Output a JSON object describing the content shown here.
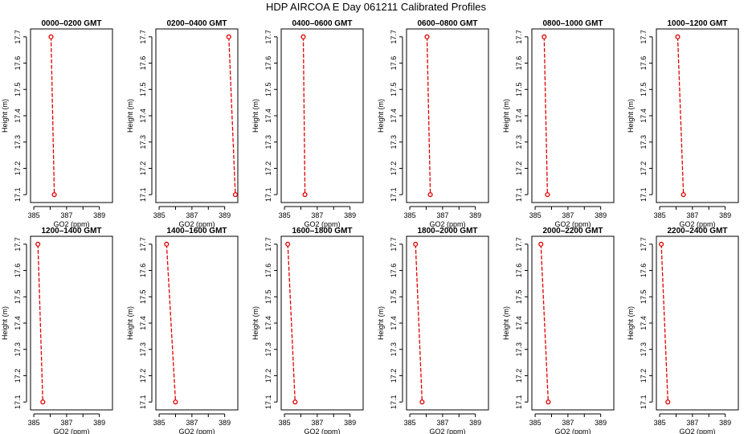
{
  "figure": {
    "title": "HDP AIRCOA E  Day 061211  Calibrated Profiles"
  },
  "chart_data": [
    {
      "type": "line",
      "title": "0000–0200 GMT",
      "xlabel": "GO2 (ppm)",
      "ylabel": "Height (m)",
      "xlim": [
        384.8,
        389.8
      ],
      "ylim": [
        17.07,
        17.73
      ],
      "x_ticks": [
        385,
        387,
        389
      ],
      "y_ticks": [
        17.1,
        17.2,
        17.3,
        17.4,
        17.5,
        17.6,
        17.7
      ],
      "x_tick_labels": [
        "385",
        "387",
        "389"
      ],
      "y_tick_labels": [
        "17.1",
        "17.2",
        "17.3",
        "17.4",
        "17.5",
        "17.6",
        "17.7"
      ],
      "grid": false,
      "legend": "none",
      "series": [
        {
          "x": [
            386.05,
            386.25
          ],
          "y": [
            17.7,
            17.1
          ]
        }
      ]
    },
    {
      "type": "line",
      "title": "0200–0400 GMT",
      "xlabel": "GO2 (ppm)",
      "ylabel": "Height (m)",
      "xlim": [
        384.8,
        389.8
      ],
      "ylim": [
        17.07,
        17.73
      ],
      "x_ticks": [
        385,
        387,
        389
      ],
      "y_ticks": [
        17.1,
        17.2,
        17.3,
        17.4,
        17.5,
        17.6,
        17.7
      ],
      "x_tick_labels": [
        "385",
        "387",
        "389"
      ],
      "y_tick_labels": [
        "17.1",
        "17.2",
        "17.3",
        "17.4",
        "17.5",
        "17.6",
        "17.7"
      ],
      "grid": false,
      "legend": "none",
      "series": [
        {
          "x": [
            389.25,
            389.65
          ],
          "y": [
            17.7,
            17.1
          ]
        }
      ]
    },
    {
      "type": "line",
      "title": "0400–0600 GMT",
      "xlabel": "GO2 (ppm)",
      "ylabel": "Height (m)",
      "xlim": [
        384.8,
        389.8
      ],
      "ylim": [
        17.07,
        17.73
      ],
      "x_ticks": [
        385,
        387,
        389
      ],
      "y_ticks": [
        17.1,
        17.2,
        17.3,
        17.4,
        17.5,
        17.6,
        17.7
      ],
      "x_tick_labels": [
        "385",
        "387",
        "389"
      ],
      "y_tick_labels": [
        "17.1",
        "17.2",
        "17.3",
        "17.4",
        "17.5",
        "17.6",
        "17.7"
      ],
      "grid": false,
      "legend": "none",
      "series": [
        {
          "x": [
            386.15,
            386.25
          ],
          "y": [
            17.7,
            17.1
          ]
        }
      ]
    },
    {
      "type": "line",
      "title": "0600–0800 GMT",
      "xlabel": "GO2 (ppm)",
      "ylabel": "Height (m)",
      "xlim": [
        384.8,
        389.8
      ],
      "ylim": [
        17.07,
        17.73
      ],
      "x_ticks": [
        385,
        387,
        389
      ],
      "y_ticks": [
        17.1,
        17.2,
        17.3,
        17.4,
        17.5,
        17.6,
        17.7
      ],
      "x_tick_labels": [
        "385",
        "387",
        "389"
      ],
      "y_tick_labels": [
        "17.1",
        "17.2",
        "17.3",
        "17.4",
        "17.5",
        "17.6",
        "17.7"
      ],
      "grid": false,
      "legend": "none",
      "series": [
        {
          "x": [
            386.05,
            386.25
          ],
          "y": [
            17.7,
            17.1
          ]
        }
      ]
    },
    {
      "type": "line",
      "title": "0800–1000 GMT",
      "xlabel": "GO2 (ppm)",
      "ylabel": "Height (m)",
      "xlim": [
        384.8,
        389.8
      ],
      "ylim": [
        17.07,
        17.73
      ],
      "x_ticks": [
        385,
        387,
        389
      ],
      "y_ticks": [
        17.1,
        17.2,
        17.3,
        17.4,
        17.5,
        17.6,
        17.7
      ],
      "x_tick_labels": [
        "385",
        "387",
        "389"
      ],
      "y_tick_labels": [
        "17.1",
        "17.2",
        "17.3",
        "17.4",
        "17.5",
        "17.6",
        "17.7"
      ],
      "grid": false,
      "legend": "none",
      "series": [
        {
          "x": [
            385.55,
            385.75
          ],
          "y": [
            17.7,
            17.1
          ]
        }
      ]
    },
    {
      "type": "line",
      "title": "1000–1200 GMT",
      "xlabel": "GO2 (ppm)",
      "ylabel": "Height (m)",
      "xlim": [
        384.8,
        389.8
      ],
      "ylim": [
        17.07,
        17.73
      ],
      "x_ticks": [
        385,
        387,
        389
      ],
      "y_ticks": [
        17.1,
        17.2,
        17.3,
        17.4,
        17.5,
        17.6,
        17.7
      ],
      "x_tick_labels": [
        "385",
        "387",
        "389"
      ],
      "y_tick_labels": [
        "17.1",
        "17.2",
        "17.3",
        "17.4",
        "17.5",
        "17.6",
        "17.7"
      ],
      "grid": false,
      "legend": "none",
      "series": [
        {
          "x": [
            386.1,
            386.45
          ],
          "y": [
            17.7,
            17.1
          ]
        }
      ]
    },
    {
      "type": "line",
      "title": "1200–1400 GMT",
      "xlabel": "GO2 (ppm)",
      "ylabel": "Height (m)",
      "xlim": [
        384.8,
        389.8
      ],
      "ylim": [
        17.07,
        17.73
      ],
      "x_ticks": [
        385,
        387,
        389
      ],
      "y_ticks": [
        17.1,
        17.2,
        17.3,
        17.4,
        17.5,
        17.6,
        17.7
      ],
      "x_tick_labels": [
        "385",
        "387",
        "389"
      ],
      "y_tick_labels": [
        "17.1",
        "17.2",
        "17.3",
        "17.4",
        "17.5",
        "17.6",
        "17.7"
      ],
      "grid": false,
      "legend": "none",
      "series": [
        {
          "x": [
            385.25,
            385.55
          ],
          "y": [
            17.7,
            17.1
          ]
        }
      ]
    },
    {
      "type": "line",
      "title": "1400–1600 GMT",
      "xlabel": "GO2 (ppm)",
      "ylabel": "Height (m)",
      "xlim": [
        384.8,
        389.8
      ],
      "ylim": [
        17.07,
        17.73
      ],
      "x_ticks": [
        385,
        387,
        389
      ],
      "y_ticks": [
        17.1,
        17.2,
        17.3,
        17.4,
        17.5,
        17.6,
        17.7
      ],
      "x_tick_labels": [
        "385",
        "387",
        "389"
      ],
      "y_tick_labels": [
        "17.1",
        "17.2",
        "17.3",
        "17.4",
        "17.5",
        "17.6",
        "17.7"
      ],
      "grid": false,
      "legend": "none",
      "series": [
        {
          "x": [
            385.45,
            386.0
          ],
          "y": [
            17.7,
            17.1
          ]
        }
      ]
    },
    {
      "type": "line",
      "title": "1600–1800 GMT",
      "xlabel": "GO2 (ppm)",
      "ylabel": "Height (m)",
      "xlim": [
        384.8,
        389.8
      ],
      "ylim": [
        17.07,
        17.73
      ],
      "x_ticks": [
        385,
        387,
        389
      ],
      "y_ticks": [
        17.1,
        17.2,
        17.3,
        17.4,
        17.5,
        17.6,
        17.7
      ],
      "x_tick_labels": [
        "385",
        "387",
        "389"
      ],
      "y_tick_labels": [
        "17.1",
        "17.2",
        "17.3",
        "17.4",
        "17.5",
        "17.6",
        "17.7"
      ],
      "grid": false,
      "legend": "none",
      "series": [
        {
          "x": [
            385.2,
            385.65
          ],
          "y": [
            17.7,
            17.1
          ]
        }
      ]
    },
    {
      "type": "line",
      "title": "1800–2000 GMT",
      "xlabel": "GO2 (ppm)",
      "ylabel": "Height (m)",
      "xlim": [
        384.8,
        389.8
      ],
      "ylim": [
        17.07,
        17.73
      ],
      "x_ticks": [
        385,
        387,
        389
      ],
      "y_ticks": [
        17.1,
        17.2,
        17.3,
        17.4,
        17.5,
        17.6,
        17.7
      ],
      "x_tick_labels": [
        "385",
        "387",
        "389"
      ],
      "y_tick_labels": [
        "17.1",
        "17.2",
        "17.3",
        "17.4",
        "17.5",
        "17.6",
        "17.7"
      ],
      "grid": false,
      "legend": "none",
      "series": [
        {
          "x": [
            385.35,
            385.75
          ],
          "y": [
            17.7,
            17.1
          ]
        }
      ]
    },
    {
      "type": "line",
      "title": "2000–2200 GMT",
      "xlabel": "GO2 (ppm)",
      "ylabel": "Height (m)",
      "xlim": [
        384.8,
        389.8
      ],
      "ylim": [
        17.07,
        17.73
      ],
      "x_ticks": [
        385,
        387,
        389
      ],
      "y_ticks": [
        17.1,
        17.2,
        17.3,
        17.4,
        17.5,
        17.6,
        17.7
      ],
      "x_tick_labels": [
        "385",
        "387",
        "389"
      ],
      "y_tick_labels": [
        "17.1",
        "17.2",
        "17.3",
        "17.4",
        "17.5",
        "17.6",
        "17.7"
      ],
      "grid": false,
      "legend": "none",
      "series": [
        {
          "x": [
            385.35,
            385.8
          ],
          "y": [
            17.7,
            17.1
          ]
        }
      ]
    },
    {
      "type": "line",
      "title": "2200–2400 GMT",
      "xlabel": "GO2 (ppm)",
      "ylabel": "Height (m)",
      "xlim": [
        384.8,
        389.8
      ],
      "ylim": [
        17.07,
        17.73
      ],
      "x_ticks": [
        385,
        387,
        389
      ],
      "y_ticks": [
        17.1,
        17.2,
        17.3,
        17.4,
        17.5,
        17.6,
        17.7
      ],
      "x_tick_labels": [
        "385",
        "387",
        "389"
      ],
      "y_tick_labels": [
        "17.1",
        "17.2",
        "17.3",
        "17.4",
        "17.5",
        "17.6",
        "17.7"
      ],
      "grid": false,
      "legend": "none",
      "series": [
        {
          "x": [
            385.1,
            385.5
          ],
          "y": [
            17.7,
            17.1
          ]
        }
      ]
    }
  ],
  "colors": {
    "series": "#e00000",
    "axes": "#000000"
  }
}
